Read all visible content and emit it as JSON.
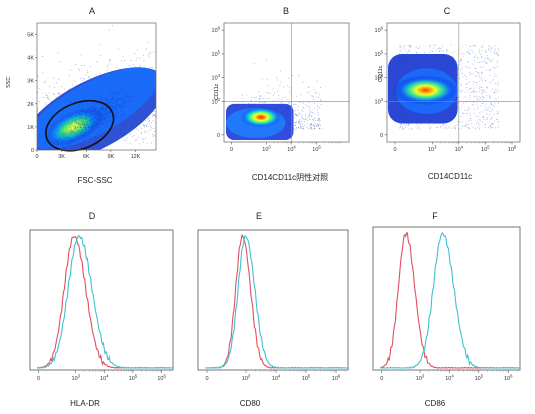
{
  "chart_data": [
    {
      "id": "A",
      "type": "scatter",
      "letter": "A",
      "xlabel": "FSC-SSC",
      "ylabel": "SSC",
      "xticks": [
        "0",
        "3K",
        "6K",
        "9K",
        "12K"
      ],
      "yticks": [
        "0",
        "1K",
        "2K",
        "3K",
        "4K",
        "5K"
      ],
      "xlim": [
        0,
        14500
      ],
      "ylim": [
        0,
        5500
      ],
      "density_center": [
        4500,
        1000
      ],
      "gate": {
        "type": "ellipse",
        "center": [
          5200,
          1050
        ],
        "rx": 4300,
        "ry": 900
      }
    },
    {
      "id": "B",
      "type": "scatter",
      "letter": "B",
      "xlabel": "CD14CD11c阴性对照",
      "ylabel": "CD11c",
      "xticks": [
        "0",
        "10^3",
        "10^4",
        "10^5"
      ],
      "yticks": [
        "0",
        "10^3",
        "10^4",
        "10^5",
        "10^6"
      ],
      "quadrant": {
        "x": 10000,
        "y": 1000
      },
      "density_center": [
        600,
        200
      ]
    },
    {
      "id": "C",
      "type": "scatter",
      "letter": "C",
      "xlabel": "CD14CD11c",
      "ylabel": "CD11c",
      "xticks": [
        "0",
        "10^3",
        "10^4",
        "10^5",
        "10^6"
      ],
      "yticks": [
        "0",
        "10^3",
        "10^4",
        "10^5",
        "10^6"
      ],
      "quadrant": {
        "x": 10000,
        "y": 1000
      },
      "density_center": [
        800,
        3000
      ]
    },
    {
      "id": "D",
      "type": "line",
      "letter": "D",
      "xlabel": "HLA-DR",
      "xticks": [
        "0",
        "10^3",
        "10^4",
        "10^5",
        "10^6"
      ],
      "series": [
        {
          "color": "#e05060",
          "peak": 800,
          "width": 0.38
        },
        {
          "color": "#40c0d0",
          "peak": 1200,
          "width": 0.42
        }
      ]
    },
    {
      "id": "E",
      "type": "line",
      "letter": "E",
      "xlabel": "CD80",
      "xticks": [
        "0",
        "10^3",
        "10^4",
        "10^5",
        "10^6"
      ],
      "series": [
        {
          "color": "#e05060",
          "peak": 700,
          "width": 0.25
        },
        {
          "color": "#40c0d0",
          "peak": 900,
          "width": 0.28
        }
      ]
    },
    {
      "id": "F",
      "type": "line",
      "letter": "F",
      "xlabel": "CD86",
      "xticks": [
        "0",
        "10^3",
        "10^4",
        "10^5",
        "10^6"
      ],
      "series": [
        {
          "color": "#e05060",
          "peak": 300,
          "width": 0.28
        },
        {
          "color": "#40c0d0",
          "peak": 5500,
          "width": 0.35
        }
      ]
    }
  ]
}
